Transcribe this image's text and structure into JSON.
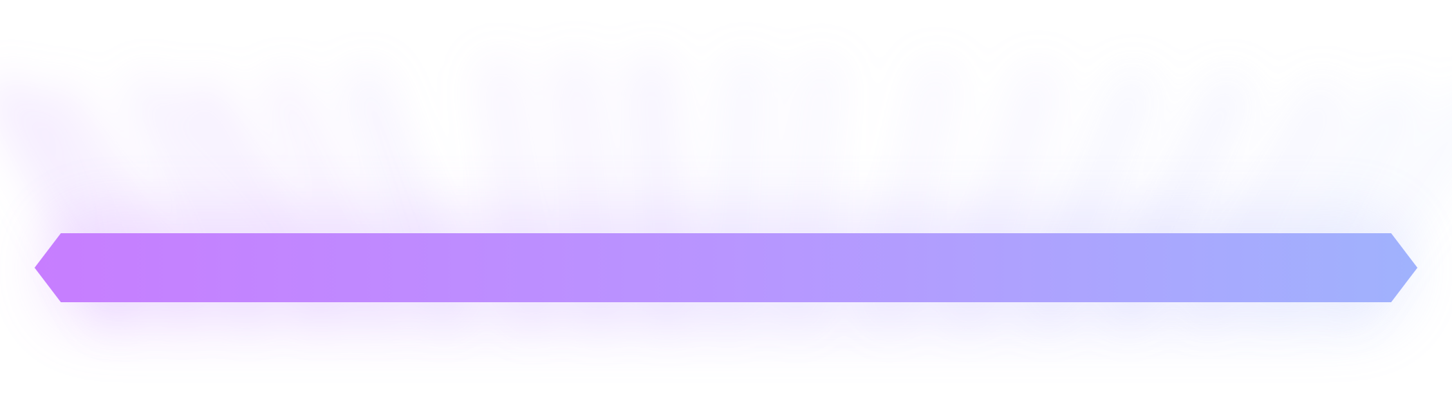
{
  "banner": {
    "shape": "elongated-hexagon",
    "gradient_start": "#c77dff",
    "gradient_mid": "#b895ff",
    "gradient_end": "#a0b2fd"
  },
  "glow": {
    "start_color": "#d8b4fe",
    "end_color": "#c7d2fe",
    "style": "soft-rays"
  },
  "background": "#ffffff"
}
